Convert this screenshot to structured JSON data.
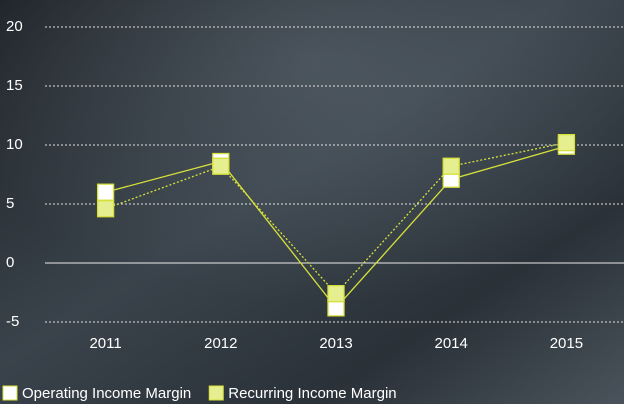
{
  "chart_data": {
    "type": "line",
    "categories": [
      "2011",
      "2012",
      "2013",
      "2014",
      "2015"
    ],
    "series": [
      {
        "name": "Operating Income Margin",
        "color": "#ffffff",
        "line_style": "solid",
        "values": [
          6.0,
          8.6,
          -3.8,
          7.1,
          9.9
        ]
      },
      {
        "name": "Recurring Income Margin",
        "color": "#e6ef8f",
        "line_style": "dotted",
        "values": [
          4.6,
          8.2,
          -2.6,
          8.2,
          10.2
        ]
      }
    ],
    "line_color": "#d6e03a",
    "ylim": [
      -5,
      20
    ],
    "yticks": [
      -5,
      0,
      5,
      10,
      15,
      20
    ],
    "grid": true
  }
}
